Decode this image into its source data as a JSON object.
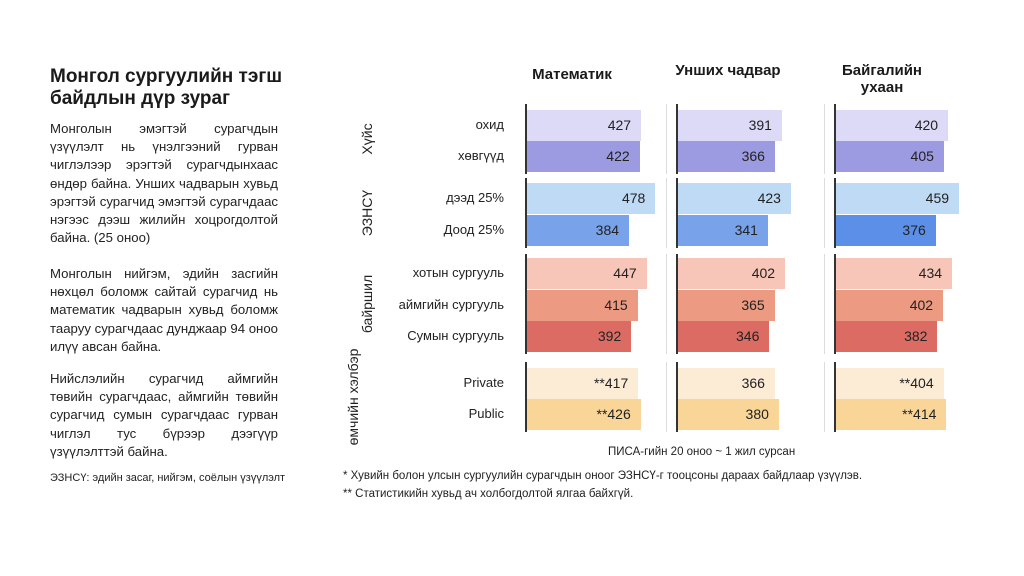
{
  "left": {
    "title": "Монгол сургуулийн тэгш байдлын дүр зураг",
    "paragraphs": [
      "Монголын эмэгтэй сурагчдын үзүүлэлт нь үнэлгээний гурван чиглэлээр эрэгтэй сурагчдынхаас өндөр байна. Унших чадварын хувьд эрэгтэй сурагчид эмэгтэй сурагчдаас нэгээс дээш жилийн хоцрогдолтой байна. (25 оноо)",
      "Монголын нийгэм, эдийн засгийн нөхцөл боломж сайтай сурагчид нь математик чадварын хувьд боломж тааруу сурагчдаас дунджаар 94 оноо илүү авсан байна.",
      "Нийслэлийн сурагчид аймгийн төвийн сурагчдаас, аймгийн төвийн сурагчид сумын сурагчдаас гурван чиглэл тус бүрээр дээгүүр үзүүлэлттэй байна."
    ],
    "note": "ЭЗНСҮ: эдийн засаг, нийгэм, соёлын үзүүлэлт"
  },
  "chart_data": {
    "type": "bar",
    "orientation": "horizontal",
    "subjects": [
      "Математик",
      "Унших чадвар",
      "Байгалийн ухаан"
    ],
    "groups": [
      {
        "label": "Хүйс",
        "rows": [
          {
            "label": "охид",
            "values": [
              427,
              391,
              420
            ],
            "display": [
              "427",
              "391",
              "420"
            ],
            "color": "#dcdaf6"
          },
          {
            "label": "хөвгүүд",
            "values": [
              422,
              366,
              405
            ],
            "display": [
              "422",
              "366",
              "405"
            ],
            "color": "#9c9ae0"
          }
        ]
      },
      {
        "label": "ЭЗНСҮ",
        "rows": [
          {
            "label": "дээд 25%",
            "values": [
              478,
              423,
              459
            ],
            "display": [
              "478",
              "423",
              "459"
            ],
            "color": "#bfdaf4"
          },
          {
            "label": "Доод 25%",
            "values": [
              384,
              341,
              376
            ],
            "display": [
              "384",
              "341",
              "376"
            ],
            "color": "#78a3ea"
          }
        ]
      },
      {
        "label": "байршил",
        "rows": [
          {
            "label": "хотын сургууль",
            "values": [
              447,
              402,
              434
            ],
            "display": [
              "447",
              "402",
              "434"
            ],
            "color": "#f8c6b8"
          },
          {
            "label": "аймгийн сургууль",
            "values": [
              415,
              365,
              402
            ],
            "display": [
              "415",
              "365",
              "402"
            ],
            "color": "#ec9a82"
          },
          {
            "label": "Сумын сургууль",
            "values": [
              392,
              346,
              382
            ],
            "display": [
              "392",
              "346",
              "382"
            ],
            "color": "#dc6c63"
          }
        ]
      },
      {
        "label": "өмчийн хэлбэр",
        "rows": [
          {
            "label": "Private",
            "values": [
              417,
              366,
              404
            ],
            "display": [
              "**417",
              "366",
              "**404"
            ],
            "color": "#fdecd5"
          },
          {
            "label": "Public",
            "values": [
              426,
              380,
              414
            ],
            "display": [
              "**426",
              "380",
              "**414"
            ],
            "color": "#f9d597"
          }
        ]
      }
    ],
    "axis_note": "ПИСА-гийн 20 оноо ~ 1 жил сурсан",
    "footnotes": [
      "* Хувийн болон улсын сургуулийн сурагчдын оноог ЭЗНСҮ-г тооцсоны дараах байдлаар үзүүлэв.",
      "** Статистикийн хувьд ач холбогдолтой ялгаа байхгүй."
    ]
  }
}
